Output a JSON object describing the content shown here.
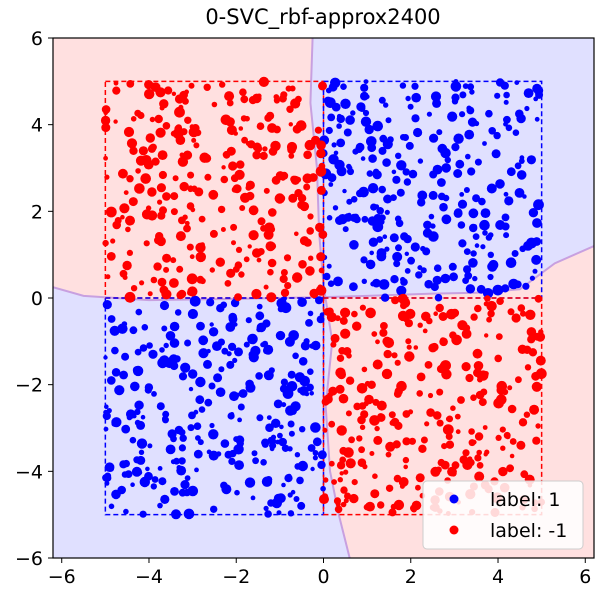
{
  "chart_data": {
    "type": "scatter",
    "title": "0-SVC_rbf-approx2400",
    "xlabel": "",
    "ylabel": "",
    "xlim": [
      -6.2,
      6.2
    ],
    "ylim": [
      -6,
      6
    ],
    "xticks": [
      -6,
      -4,
      -2,
      0,
      2,
      4,
      6
    ],
    "yticks": [
      -6,
      -4,
      -2,
      0,
      2,
      4,
      6
    ],
    "xtick_labels": [
      "−6",
      "−4",
      "−2",
      "0",
      "2",
      "4",
      "6"
    ],
    "ytick_labels": [
      "−6",
      "−4",
      "−2",
      "0",
      "2",
      "4",
      "6"
    ],
    "grid": false,
    "legend_position": "bottom-right",
    "series": [
      {
        "name": "label: 1",
        "color": "#0000ff",
        "regions": [
          [
            0,
            5,
            0,
            5
          ],
          [
            -5,
            0,
            -5,
            0
          ]
        ]
      },
      {
        "name": "label: -1",
        "color": "#ff0000",
        "regions": [
          [
            -5,
            0,
            0,
            5
          ],
          [
            0,
            5,
            -5,
            0
          ]
        ]
      }
    ],
    "boxes": [
      {
        "x": [
          -5,
          0
        ],
        "y": [
          0,
          5
        ],
        "color": "#ff0000"
      },
      {
        "x": [
          0,
          5
        ],
        "y": [
          0,
          5
        ],
        "color": "#0000ff"
      },
      {
        "x": [
          -5,
          0
        ],
        "y": [
          -5,
          0
        ],
        "color": "#0000ff"
      },
      {
        "x": [
          0,
          5
        ],
        "y": [
          -5,
          0
        ],
        "color": "#ff0000"
      }
    ],
    "decision_regions": {
      "positive_color": "#e0e0ff",
      "negative_color": "#ffe0e0",
      "boundary_color": "#c8a0e0"
    }
  }
}
